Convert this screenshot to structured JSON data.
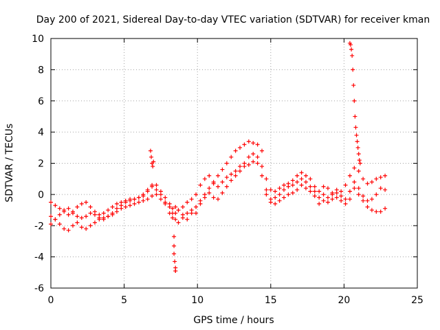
{
  "chart_data": {
    "type": "scatter",
    "title": "Day 200 of 2021, Sidereal Day-to-day VTEC variation (SDTVAR) for receiver kman",
    "xlabel": "GPS time / hours",
    "ylabel": "SDTVAR / TECUs",
    "xlim": [
      0,
      25
    ],
    "ylim": [
      -6,
      10
    ],
    "xticks": [
      0,
      5,
      10,
      15,
      20,
      25
    ],
    "yticks": [
      -6,
      -4,
      -2,
      0,
      2,
      4,
      6,
      8,
      10
    ],
    "grid": true,
    "marker": "+",
    "series": [
      {
        "name": "SDTVAR",
        "color": "#ff0000",
        "x": [
          0.0,
          0.3,
          0.6,
          0.9,
          1.2,
          1.5,
          1.8,
          2.1,
          2.4,
          2.7,
          3.0,
          3.3,
          3.6,
          3.9,
          4.2,
          4.5,
          4.8,
          5.1,
          5.4,
          5.7,
          6.0,
          6.3,
          6.6,
          6.9,
          7.2,
          7.5,
          7.8,
          8.1,
          8.3,
          8.5,
          8.7,
          9.0,
          9.3,
          9.6,
          9.9,
          10.2,
          10.5,
          10.8,
          11.1,
          11.4,
          11.7,
          12.0,
          12.3,
          12.6,
          12.9,
          13.2,
          13.5,
          13.8,
          14.1,
          14.4,
          14.7,
          15.0,
          15.3,
          15.6,
          15.9,
          16.2,
          16.5,
          16.8,
          17.1,
          17.4,
          17.7,
          18.0,
          18.3,
          18.6,
          18.9,
          19.2,
          19.5,
          19.8,
          20.1,
          20.4,
          20.7,
          21.0,
          21.3,
          21.6,
          21.9,
          22.2,
          22.5,
          22.8,
          0.0,
          0.3,
          0.6,
          0.9,
          1.2,
          1.5,
          1.8,
          2.1,
          2.4,
          2.7,
          3.0,
          3.3,
          3.6,
          3.9,
          4.2,
          4.5,
          4.8,
          5.1,
          5.4,
          5.7,
          6.0,
          6.3,
          6.6,
          6.9,
          7.2,
          7.5,
          7.8,
          8.1,
          8.3,
          8.5,
          8.7,
          9.0,
          9.3,
          9.6,
          9.9,
          10.2,
          10.5,
          10.8,
          11.1,
          11.4,
          11.7,
          12.0,
          12.3,
          12.6,
          12.9,
          13.2,
          13.5,
          13.8,
          14.1,
          14.4,
          14.7,
          15.0,
          15.3,
          15.6,
          15.9,
          16.2,
          16.5,
          16.8,
          17.1,
          17.4,
          17.7,
          18.0,
          18.3,
          18.6,
          18.9,
          19.2,
          19.5,
          19.8,
          20.1,
          20.4,
          20.7,
          21.0,
          21.3,
          21.6,
          21.9,
          22.2,
          22.5,
          22.8,
          0.0,
          0.3,
          0.6,
          0.9,
          1.2,
          1.5,
          1.8,
          2.1,
          2.4,
          2.7,
          3.0,
          3.3,
          3.6,
          3.9,
          4.2,
          4.5,
          4.8,
          5.1,
          5.4,
          5.7,
          6.0,
          6.3,
          6.6,
          6.9,
          7.2,
          7.5,
          7.8,
          8.1,
          8.3,
          8.5,
          8.7,
          9.0,
          9.3,
          9.6,
          9.9,
          10.2,
          10.5,
          10.8,
          11.1,
          11.4,
          11.7,
          12.0,
          12.3,
          12.6,
          12.9,
          13.2,
          13.5,
          13.8,
          14.1,
          14.4,
          14.7,
          15.0,
          15.3,
          15.6,
          15.9,
          16.2,
          16.5,
          16.8,
          17.1,
          17.4,
          17.7,
          18.0,
          18.3,
          18.6,
          18.9,
          19.2,
          19.5,
          19.8,
          20.1,
          20.4,
          20.7,
          21.0,
          21.3,
          21.6,
          21.9,
          22.2,
          22.5,
          22.8,
          6.8,
          6.85,
          6.9,
          6.95,
          7.0,
          8.4,
          8.4,
          8.4,
          8.45,
          8.5,
          8.5,
          8.5,
          20.4,
          20.45,
          20.5,
          20.55,
          20.6,
          20.65,
          20.7,
          20.75,
          20.8,
          20.85,
          20.9,
          20.95,
          21.0,
          21.05,
          21.1
        ],
        "y": [
          -0.5,
          -0.7,
          -0.9,
          -1.1,
          -1.3,
          -1.1,
          -0.8,
          -0.6,
          -0.5,
          -0.8,
          -1.1,
          -1.3,
          -1.2,
          -1.0,
          -0.8,
          -0.6,
          -0.5,
          -0.4,
          -0.3,
          -0.3,
          -0.2,
          -0.1,
          0.2,
          0.5,
          0.3,
          0.0,
          -0.6,
          -1.2,
          -1.5,
          -1.2,
          -1.0,
          -0.8,
          -0.5,
          -0.3,
          0.0,
          0.6,
          1.0,
          1.2,
          0.8,
          1.2,
          1.6,
          2.0,
          2.4,
          2.8,
          3.0,
          3.2,
          3.4,
          3.3,
          3.2,
          2.8,
          1.0,
          0.3,
          0.2,
          0.4,
          0.6,
          0.7,
          0.9,
          1.2,
          1.4,
          1.2,
          1.0,
          0.5,
          0.2,
          0.5,
          0.4,
          0.1,
          0.3,
          0.2,
          0.6,
          1.2,
          1.7,
          1.5,
          1.0,
          0.7,
          0.8,
          1.0,
          1.1,
          1.2,
          -1.9,
          -1.6,
          -1.3,
          -1.0,
          -0.9,
          -1.2,
          -1.4,
          -1.5,
          -1.4,
          -1.2,
          -1.3,
          -1.5,
          -1.6,
          -1.4,
          -1.2,
          -0.9,
          -0.7,
          -0.5,
          -0.4,
          -0.3,
          -0.2,
          0.0,
          0.3,
          0.6,
          0.6,
          0.2,
          -0.2,
          -0.6,
          -0.9,
          -0.8,
          -1.0,
          -1.3,
          -1.6,
          -1.2,
          -0.8,
          -0.4,
          0.0,
          0.4,
          0.7,
          0.5,
          0.8,
          1.1,
          1.3,
          1.5,
          1.8,
          2.0,
          2.4,
          2.6,
          2.4,
          1.8,
          0.3,
          -0.3,
          -0.2,
          0.0,
          0.3,
          0.5,
          0.6,
          0.8,
          1.0,
          0.8,
          0.5,
          0.2,
          -0.2,
          0.0,
          -0.2,
          0.0,
          0.1,
          -0.1,
          -0.3,
          0.2,
          0.8,
          0.4,
          -0.1,
          -0.4,
          -0.3,
          0.0,
          0.4,
          0.3,
          -1.4,
          -1.6,
          -1.9,
          -2.2,
          -2.3,
          -2.0,
          -1.8,
          -2.1,
          -2.2,
          -2.0,
          -1.8,
          -1.6,
          -1.5,
          -1.4,
          -1.3,
          -1.1,
          -0.9,
          -0.8,
          -0.7,
          -0.6,
          -0.5,
          -0.4,
          -0.3,
          -0.1,
          0.0,
          -0.3,
          -0.5,
          -0.8,
          -1.2,
          -1.6,
          -1.8,
          -1.5,
          -1.2,
          -1.0,
          -1.2,
          -0.6,
          -0.2,
          0.1,
          -0.2,
          -0.3,
          0.1,
          0.5,
          0.9,
          1.2,
          1.5,
          1.8,
          1.9,
          2.1,
          2.0,
          1.2,
          0.0,
          -0.5,
          -0.6,
          -0.4,
          -0.2,
          0.0,
          0.1,
          0.3,
          0.6,
          0.4,
          0.2,
          -0.1,
          -0.6,
          -0.4,
          -0.5,
          -0.3,
          -0.2,
          -0.4,
          -0.6,
          -0.3,
          0.4,
          0.0,
          -0.4,
          -0.8,
          -1.0,
          -1.1,
          -1.1,
          -0.9,
          2.8,
          2.4,
          2.0,
          1.8,
          2.1,
          -2.7,
          -3.3,
          -3.8,
          -4.3,
          -4.7,
          -4.9,
          -4.9,
          9.7,
          9.6,
          9.3,
          8.9,
          8.0,
          7.0,
          6.0,
          5.0,
          4.3,
          3.8,
          3.4,
          3.0,
          2.6,
          2.2,
          2.0
        ]
      }
    ]
  }
}
